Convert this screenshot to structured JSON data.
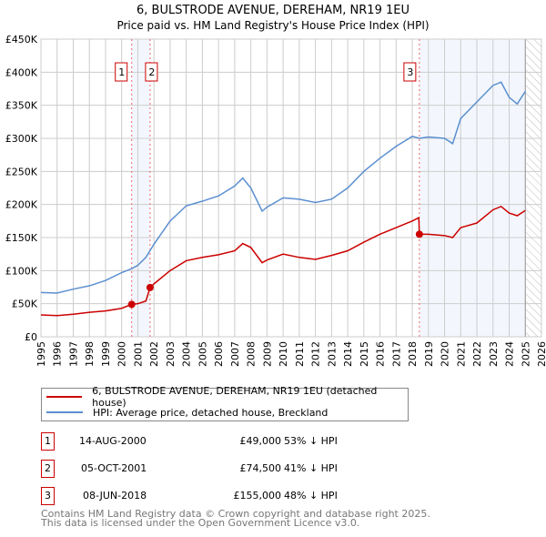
{
  "chart_data": {
    "type": "line",
    "title": "6, BULSTRODE AVENUE, DEREHAM, NR19 1EU",
    "subtitle": "Price paid vs. HM Land Registry's House Price Index (HPI)",
    "xlim": [
      1995,
      2026
    ],
    "ylim": [
      0,
      450000
    ],
    "x_ticks": [
      "1995",
      "1996",
      "1997",
      "1998",
      "1999",
      "2000",
      "2001",
      "2002",
      "2003",
      "2004",
      "2005",
      "2006",
      "2007",
      "2008",
      "2009",
      "2010",
      "2011",
      "2012",
      "2013",
      "2014",
      "2015",
      "2016",
      "2017",
      "2018",
      "2019",
      "2020",
      "2021",
      "2022",
      "2023",
      "2024",
      "2025",
      "2026"
    ],
    "y_ticks": [
      {
        "v": 0,
        "label": "£0"
      },
      {
        "v": 50000,
        "label": "£50K"
      },
      {
        "v": 100000,
        "label": "£100K"
      },
      {
        "v": 150000,
        "label": "£150K"
      },
      {
        "v": 200000,
        "label": "£200K"
      },
      {
        "v": 250000,
        "label": "£250K"
      },
      {
        "v": 300000,
        "label": "£300K"
      },
      {
        "v": 350000,
        "label": "£350K"
      },
      {
        "v": 400000,
        "label": "£400K"
      },
      {
        "v": 450000,
        "label": "£450K"
      }
    ],
    "grid": true,
    "series": [
      {
        "name": "6, BULSTRODE AVENUE, DEREHAM, NR19 1EU (detached house)",
        "color": "#cc0000",
        "x": [
          1995,
          1996,
          1997,
          1998,
          1999,
          2000,
          2000.62,
          2001,
          2001.5,
          2001.76,
          2002,
          2003,
          2004,
          2005,
          2006,
          2007,
          2007.5,
          2008,
          2008.7,
          2009,
          2010,
          2011,
          2012,
          2013,
          2014,
          2015,
          2016,
          2017,
          2018,
          2018.4,
          2018.44,
          2019,
          2020,
          2020.5,
          2021,
          2022,
          2023,
          2023.5,
          2024,
          2024.5,
          2025
        ],
        "y": [
          33000,
          32000,
          34000,
          37000,
          39000,
          43000,
          49000,
          50000,
          54000,
          74500,
          80000,
          100000,
          115000,
          120000,
          124000,
          130000,
          141000,
          135000,
          112000,
          116000,
          125000,
          120000,
          117000,
          123000,
          130000,
          143000,
          155000,
          165000,
          175000,
          180000,
          155000,
          155000,
          153000,
          150000,
          165000,
          172000,
          192000,
          197000,
          187000,
          183000,
          191000
        ]
      },
      {
        "name": "HPI: Average price, detached house, Breckland",
        "color": "#5b8fd0",
        "x": [
          1995,
          1996,
          1997,
          1998,
          1999,
          2000,
          2000.62,
          2001,
          2001.5,
          2002,
          2003,
          2004,
          2005,
          2006,
          2007,
          2007.5,
          2008,
          2008.7,
          2009,
          2010,
          2011,
          2012,
          2013,
          2014,
          2015,
          2016,
          2017,
          2018,
          2018.44,
          2019,
          2020,
          2020.5,
          2021,
          2022,
          2023,
          2023.5,
          2024,
          2024.5,
          2025
        ],
        "y": [
          67000,
          66000,
          72000,
          77000,
          85000,
          97000,
          103000,
          108000,
          120000,
          140000,
          175000,
          198000,
          205000,
          213000,
          228000,
          240000,
          225000,
          190000,
          196000,
          210000,
          208000,
          203000,
          208000,
          225000,
          250000,
          270000,
          288000,
          303000,
          300000,
          302000,
          300000,
          292000,
          330000,
          355000,
          380000,
          385000,
          362000,
          352000,
          371000
        ]
      }
    ],
    "legend_placement": "below",
    "annotations": [
      {
        "label": "1",
        "x": 2000.62,
        "y": 49000
      },
      {
        "label": "2",
        "x": 2001.76,
        "y": 74500
      },
      {
        "label": "3",
        "x": 2018.44,
        "y": 155000
      }
    ]
  },
  "legend": {
    "items": [
      {
        "label": "6, BULSTRODE AVENUE, DEREHAM, NR19 1EU (detached house)",
        "color": "#cc0000"
      },
      {
        "label": "HPI: Average price, detached house, Breckland",
        "color": "#5b8fd0"
      }
    ]
  },
  "transactions": [
    {
      "num": "1",
      "date": "14-AUG-2000",
      "price": "£49,000",
      "hpi": "53% ↓ HPI"
    },
    {
      "num": "2",
      "date": "05-OCT-2001",
      "price": "£74,500",
      "hpi": "41% ↓ HPI"
    },
    {
      "num": "3",
      "date": "08-JUN-2018",
      "price": "£155,000",
      "hpi": "48% ↓ HPI"
    }
  ],
  "footer": {
    "line1": "Contains HM Land Registry data © Crown copyright and database right 2025.",
    "line2": "This data is licensed under the Open Government Licence v3.0."
  }
}
